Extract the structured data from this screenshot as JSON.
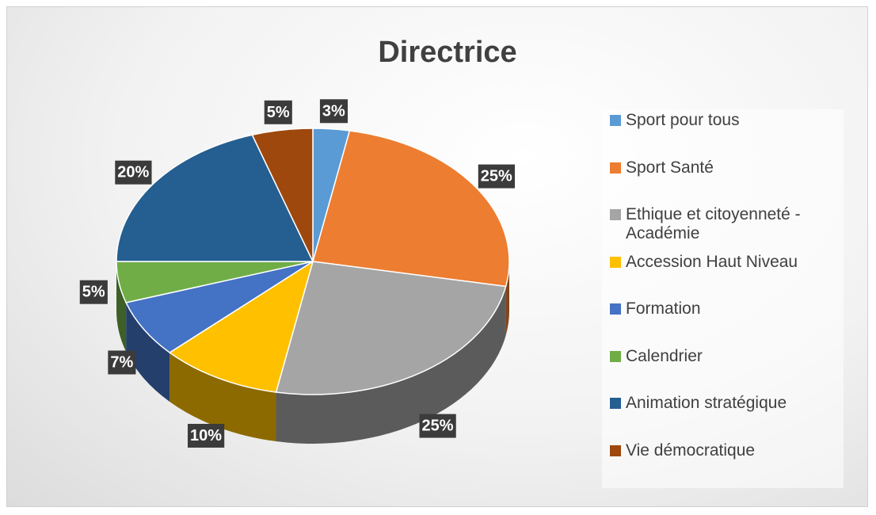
{
  "chart_data": {
    "type": "pie",
    "title": "Directrice",
    "categories": [
      "Sport pour tous",
      "Sport Santé",
      "Ethique et citoyenneté - Académie",
      "Accession Haut Niveau",
      "Formation",
      "Calendrier",
      "Animation stratégique",
      "Vie démocratique"
    ],
    "values": [
      3,
      25,
      25,
      10,
      7,
      5,
      20,
      5
    ],
    "value_labels": [
      "3%",
      "25%",
      "25%",
      "10%",
      "7%",
      "5%",
      "20%",
      "5%"
    ],
    "colors": [
      "#5b9bd5",
      "#ed7d31",
      "#a5a5a5",
      "#ffc000",
      "#4472c4",
      "#70ad47",
      "#255e91",
      "#9e480e"
    ],
    "legend": "right"
  }
}
